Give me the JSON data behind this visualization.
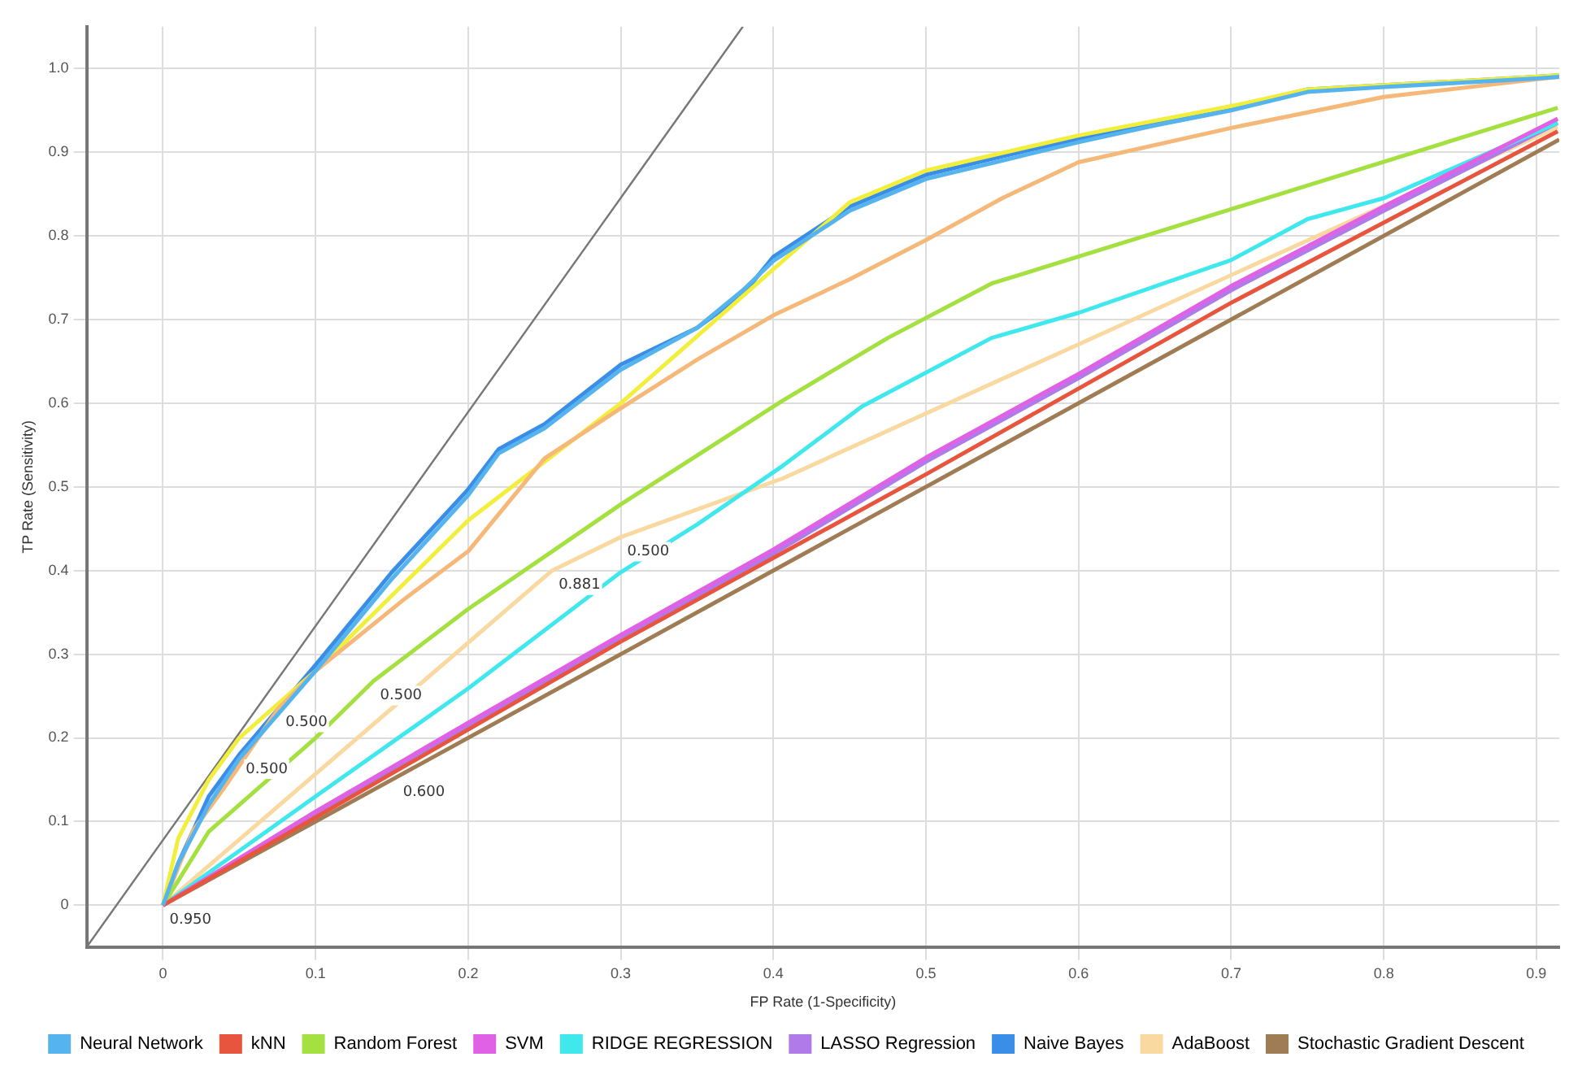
{
  "chart_data": {
    "type": "line",
    "xlabel": "FP Rate (1-Specificity)",
    "ylabel": "TP Rate (Sensitivity)",
    "xlim": [
      -0.05,
      0.915
    ],
    "ylim": [
      -0.05,
      1.05
    ],
    "xticks": [
      0,
      0.1,
      0.2,
      0.3,
      0.4,
      0.5,
      0.6,
      0.7,
      0.8,
      0.9
    ],
    "yticks": [
      0,
      0.1,
      0.2,
      0.3,
      0.4,
      0.5,
      0.6,
      0.7,
      0.8,
      0.9,
      {
        "value": 1,
        "label": "1.0"
      }
    ],
    "grid": true,
    "legend": "bottom",
    "series": [
      {
        "name": "Neural Network",
        "color": "#55b4ee",
        "x": [
          0,
          0.01,
          0.03,
          0.05,
          0.1,
          0.15,
          0.2,
          0.22,
          0.25,
          0.3,
          0.35,
          0.38,
          0.4,
          0.45,
          0.5,
          0.55,
          0.6,
          0.65,
          0.7,
          0.75,
          0.8,
          0.85,
          0.9,
          0.915
        ],
        "values": [
          0,
          0.05,
          0.12,
          0.175,
          0.28,
          0.39,
          0.49,
          0.54,
          0.57,
          0.64,
          0.69,
          0.735,
          0.77,
          0.83,
          0.868,
          0.89,
          0.912,
          0.932,
          0.95,
          0.972,
          0.978,
          0.983,
          0.988,
          0.99
        ]
      },
      {
        "name": "kNN",
        "color": "#e8553e",
        "x": [
          0,
          0.1,
          0.3,
          0.5,
          0.7,
          0.914
        ],
        "values": [
          0,
          0.105,
          0.315,
          0.515,
          0.72,
          0.925
        ]
      },
      {
        "name": "Random Forest",
        "color": "#a3e040",
        "x": [
          0,
          0.03,
          0.1,
          0.138,
          0.2,
          0.3,
          0.406,
          0.475,
          0.543,
          0.914
        ],
        "values": [
          0,
          0.088,
          0.2,
          0.268,
          0.354,
          0.479,
          0.603,
          0.678,
          0.743,
          0.953
        ]
      },
      {
        "color": "#f5b878",
        "x": [
          0,
          0.02,
          0.04,
          0.076,
          0.1,
          0.159,
          0.2,
          0.25,
          0.3,
          0.35,
          0.4,
          0.45,
          0.5,
          0.55,
          0.6,
          0.7,
          0.8,
          0.9,
          0.915
        ],
        "values": [
          0,
          0.09,
          0.14,
          0.236,
          0.28,
          0.367,
          0.423,
          0.534,
          0.594,
          0.652,
          0.705,
          0.748,
          0.795,
          0.845,
          0.888,
          0.929,
          0.966,
          0.987,
          0.99
        ]
      },
      {
        "color": "#f2ee3c",
        "x": [
          0,
          0.01,
          0.03,
          0.05,
          0.1,
          0.15,
          0.2,
          0.25,
          0.3,
          0.35,
          0.4,
          0.45,
          0.5,
          0.6,
          0.7,
          0.75,
          0.9,
          0.915
        ],
        "values": [
          0,
          0.08,
          0.15,
          0.2,
          0.28,
          0.37,
          0.46,
          0.53,
          0.6,
          0.68,
          0.76,
          0.84,
          0.878,
          0.92,
          0.955,
          0.975,
          0.99,
          0.992
        ]
      },
      {
        "name": "SVM",
        "color": "#e060e6",
        "x": [
          0,
          0.1,
          0.2,
          0.3,
          0.4,
          0.5,
          0.6,
          0.7,
          0.8,
          0.914
        ],
        "values": [
          0,
          0.112,
          0.218,
          0.323,
          0.425,
          0.535,
          0.635,
          0.74,
          0.835,
          0.94
        ]
      },
      {
        "name": "RIDGE REGRESSION",
        "color": "#40e8ee",
        "x": [
          0,
          0.05,
          0.1,
          0.2,
          0.3,
          0.35,
          0.406,
          0.458,
          0.543,
          0.6,
          0.7,
          0.75,
          0.8,
          0.914
        ],
        "values": [
          0,
          0.065,
          0.13,
          0.259,
          0.398,
          0.455,
          0.525,
          0.596,
          0.678,
          0.708,
          0.771,
          0.82,
          0.845,
          0.935
        ]
      },
      {
        "name": "LASSO Regression",
        "color": "#b07ae8",
        "x": [
          0,
          0.1,
          0.2,
          0.3,
          0.4,
          0.5,
          0.6,
          0.7,
          0.8,
          0.914
        ],
        "values": [
          0,
          0.11,
          0.215,
          0.32,
          0.42,
          0.53,
          0.63,
          0.735,
          0.83,
          0.935
        ]
      },
      {
        "name": "Naive Bayes",
        "color": "#3a8ee8",
        "x": [
          0,
          0.01,
          0.03,
          0.05,
          0.1,
          0.15,
          0.2,
          0.22,
          0.25,
          0.3,
          0.35,
          0.38,
          0.4,
          0.45,
          0.5,
          0.55,
          0.6,
          0.65,
          0.7,
          0.75,
          0.8,
          0.85,
          0.9,
          0.915
        ],
        "values": [
          0,
          0.05,
          0.13,
          0.18,
          0.287,
          0.398,
          0.497,
          0.545,
          0.575,
          0.646,
          0.69,
          0.73,
          0.775,
          0.835,
          0.873,
          0.895,
          0.916,
          0.935,
          0.953,
          0.975,
          0.98,
          0.985,
          0.99,
          0.992
        ]
      },
      {
        "name": "AdaBoost",
        "color": "#f9d9a0",
        "x": [
          0,
          0.255,
          0.3,
          0.406,
          0.914
        ],
        "values": [
          0,
          0.4,
          0.44,
          0.51,
          0.93
        ]
      },
      {
        "name": "Stochastic Gradient Descent",
        "color": "#a07c55",
        "x": [
          0,
          0.153,
          0.915
        ],
        "values": [
          0,
          0.153,
          0.915
        ]
      },
      {
        "color": "#777777",
        "x": [
          -0.05,
          0.38
        ],
        "values": [
          -0.05,
          1.05
        ]
      }
    ],
    "annotations": [
      {
        "text": "0.500",
        "x": 0.076,
        "y": 0.236
      },
      {
        "text": "0.500",
        "x": 0.05,
        "y": 0.18
      },
      {
        "text": "0.500",
        "x": 0.138,
        "y": 0.268
      },
      {
        "text": "0.500",
        "x": 0.3,
        "y": 0.44
      },
      {
        "text": "0.881",
        "x": 0.255,
        "y": 0.4
      },
      {
        "text": "0.600",
        "x": 0.153,
        "y": 0.153
      },
      {
        "text": "0.950",
        "x": 0,
        "y": 0
      }
    ]
  }
}
